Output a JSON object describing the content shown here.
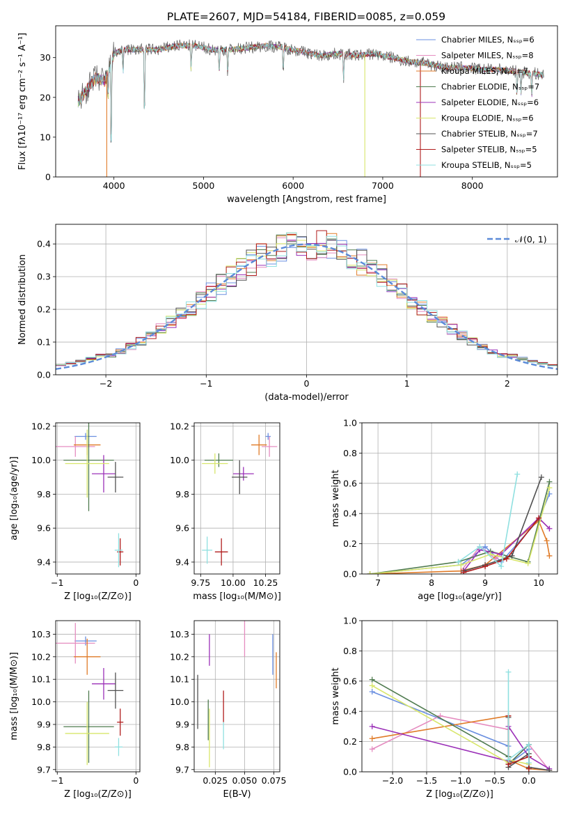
{
  "title": "PLATE=2607, MJD=54184, FIBERID=0085, z=0.059",
  "colors": {
    "Chabrier MILES": "#6a8fe0",
    "Salpeter MILES": "#e58cc0",
    "Kroupa MILES": "#e07b28",
    "Chabrier ELODIE": "#4f7b4f",
    "Salpeter ELODIE": "#9b30b8",
    "Kroupa ELODIE": "#d8e66a",
    "Chabrier STELIB": "#505050",
    "Salpeter STELIB": "#b01c1c",
    "Kroupa STELIB": "#8fe0e0"
  },
  "chart_data": [
    {
      "id": "spectrum",
      "type": "line",
      "title": "PLATE=2607, MJD=54184, FIBERID=0085, z=0.059",
      "xlabel": "wavelength [Angstrom, rest frame]",
      "ylabel": "Flux [fλ10⁻¹⁷ erg cm⁻² s⁻¹ A⁻¹]",
      "xlim": [
        3350,
        8950
      ],
      "ylim": [
        0,
        38
      ],
      "xticks": [
        "4000",
        "5000",
        "6000",
        "7000",
        "8000"
      ],
      "yticks": [
        "0",
        "10",
        "20",
        "30"
      ],
      "legend": [
        "Chabrier MILES, Nₛₛₚ=6",
        "Salpeter MILES, Nₛₛₚ=8",
        "Kroupa MILES, Nₛₛₚ=7",
        "Chabrier ELODIE, Nₛₛₚ=7",
        "Salpeter ELODIE, Nₛₛₚ=6",
        "Kroupa ELODIE, Nₛₛₚ=6",
        "Chabrier STELIB, Nₛₛₚ=7",
        "Salpeter STELIB, Nₛₛₚ=5",
        "Kroupa STELIB, Nₛₛₚ=5"
      ],
      "continuum": {
        "x": [
          3600,
          3700,
          3800,
          3900,
          4000,
          4100,
          4300,
          4500,
          4700,
          4900,
          5100,
          5300,
          5500,
          5700,
          5900,
          6100,
          6300,
          6500,
          6700,
          6900,
          7100,
          7300,
          7500,
          7700,
          7900,
          8100,
          8300,
          8500,
          8700,
          8800
        ],
        "y": [
          19,
          22,
          25,
          24,
          31,
          32,
          32,
          32,
          33,
          33,
          32,
          32,
          32.5,
          33,
          32.5,
          31.5,
          30.5,
          31,
          30.5,
          31,
          30,
          29,
          28.5,
          27.5,
          27.5,
          27,
          27,
          26.5,
          26,
          25.5
        ]
      },
      "absorption_lines": [
        3934,
        3969,
        4102,
        4340,
        4861,
        5175,
        5270,
        5890,
        6563,
        8498,
        8542,
        8662
      ],
      "dropouts": [
        3920,
        6800,
        7420
      ]
    },
    {
      "id": "residuals",
      "type": "line",
      "xlabel": "(data-model)/error",
      "ylabel": "Normed distribution",
      "xlim": [
        -2.5,
        2.5
      ],
      "ylim": [
        0,
        0.46
      ],
      "xticks": [
        "−2",
        "−1",
        "0",
        "1",
        "2"
      ],
      "yticks": [
        "0.0",
        "0.1",
        "0.2",
        "0.3",
        "0.4"
      ],
      "reference": {
        "name": "𝒩(0, 1)",
        "mean": 0,
        "sigma": 1
      },
      "bin_width": 0.1,
      "histograms": "9 step histograms (one per fit) scattering around the N(0,1) curve"
    },
    {
      "id": "age-vs-Z",
      "type": "scatter",
      "xlabel": "Z [log₁₀(Z/Z⊙)]",
      "ylabel": "age  [log₁₀(age/yr)]",
      "xlim": [
        -1.02,
        0.05
      ],
      "ylim": [
        9.33,
        10.22
      ],
      "xticks": [
        "−1",
        "0"
      ],
      "yticks": [
        "9.4",
        "9.6",
        "9.8",
        "10.0",
        "10.2"
      ],
      "points": [
        {
          "fit": "Chabrier MILES",
          "x": -0.64,
          "y": 10.14,
          "xerr": 0.14,
          "yerr": 0.02
        },
        {
          "fit": "Salpeter MILES",
          "x": -0.77,
          "y": 10.08,
          "xerr": 0.25,
          "yerr": 0.06
        },
        {
          "fit": "Kroupa MILES",
          "x": -0.62,
          "y": 10.09,
          "xerr": 0.17,
          "yerr": 0.06
        },
        {
          "fit": "Chabrier ELODIE",
          "x": -0.6,
          "y": 10.0,
          "xerr": 0.32,
          "yerr": 0.3
        },
        {
          "fit": "Salpeter ELODIE",
          "x": -0.41,
          "y": 9.92,
          "xerr": 0.15,
          "yerr": 0.11
        },
        {
          "fit": "Kroupa ELODIE",
          "x": -0.62,
          "y": 9.98,
          "xerr": 0.28,
          "yerr": 0.2
        },
        {
          "fit": "Chabrier STELIB",
          "x": -0.26,
          "y": 9.9,
          "xerr": 0.1,
          "yerr": 0.09
        },
        {
          "fit": "Salpeter STELIB",
          "x": -0.2,
          "y": 9.46,
          "xerr": 0.04,
          "yerr": 0.08
        },
        {
          "fit": "Kroupa STELIB",
          "x": -0.22,
          "y": 9.47,
          "xerr": 0.05,
          "yerr": 0.1
        }
      ]
    },
    {
      "id": "age-vs-mass",
      "type": "scatter",
      "xlabel": "mass [log₁₀(M/M⊙)]",
      "ylabel": "",
      "xlim": [
        9.7,
        10.36
      ],
      "ylim": [
        9.33,
        10.22
      ],
      "xticks": [
        "9.75",
        "10.00",
        "10.25"
      ],
      "yticks": [
        "9.4",
        "9.6",
        "9.8",
        "10.0",
        "10.2"
      ],
      "points": [
        {
          "fit": "Chabrier MILES",
          "x": 10.27,
          "y": 10.14,
          "xerr": 0.02,
          "yerr": 0.02
        },
        {
          "fit": "Salpeter MILES",
          "x": 10.28,
          "y": 10.08,
          "xerr": 0.06,
          "yerr": 0.06
        },
        {
          "fit": "Kroupa MILES",
          "x": 10.2,
          "y": 10.09,
          "xerr": 0.06,
          "yerr": 0.06
        },
        {
          "fit": "Chabrier ELODIE",
          "x": 9.89,
          "y": 10.0,
          "xerr": 0.11,
          "yerr": 0.04
        },
        {
          "fit": "Salpeter ELODIE",
          "x": 10.08,
          "y": 9.92,
          "xerr": 0.08,
          "yerr": 0.04
        },
        {
          "fit": "Kroupa ELODIE",
          "x": 9.86,
          "y": 9.98,
          "xerr": 0.1,
          "yerr": 0.06
        },
        {
          "fit": "Chabrier STELIB",
          "x": 10.05,
          "y": 9.9,
          "xerr": 0.06,
          "yerr": 0.1
        },
        {
          "fit": "Salpeter STELIB",
          "x": 9.91,
          "y": 9.46,
          "xerr": 0.05,
          "yerr": 0.08
        },
        {
          "fit": "Kroupa STELIB",
          "x": 9.8,
          "y": 9.47,
          "xerr": 0.04,
          "yerr": 0.08
        }
      ]
    },
    {
      "id": "mass-weight-vs-age",
      "type": "line",
      "xlabel": "age  [log₁₀(age/yr)]",
      "ylabel": "mass weight",
      "xlim": [
        6.7,
        10.35
      ],
      "ylim": [
        0,
        1.0
      ],
      "xticks": [
        "7",
        "8",
        "9",
        "10"
      ],
      "yticks": [
        "0.0",
        "0.2",
        "0.4",
        "0.6",
        "0.8",
        "1.0"
      ],
      "series": [
        {
          "fit": "Chabrier MILES",
          "x": [
            6.85,
            8.55,
            9.0,
            9.3,
            10.0,
            10.2
          ],
          "y": [
            0.0,
            0.06,
            0.18,
            0.08,
            0.36,
            0.53
          ]
        },
        {
          "fit": "Salpeter MILES",
          "x": [
            8.55,
            8.9,
            9.2,
            10.0,
            10.2
          ],
          "y": [
            0.02,
            0.18,
            0.1,
            0.37,
            0.3
          ]
        },
        {
          "fit": "Kroupa MILES",
          "x": [
            6.85,
            8.55,
            9.0,
            10.0,
            10.15,
            10.2
          ],
          "y": [
            0.0,
            0.02,
            0.06,
            0.35,
            0.22,
            0.12
          ]
        },
        {
          "fit": "Chabrier ELODIE",
          "x": [
            6.85,
            8.5,
            9.1,
            9.8,
            10.2
          ],
          "y": [
            0.0,
            0.08,
            0.15,
            0.08,
            0.61
          ]
        },
        {
          "fit": "Salpeter ELODIE",
          "x": [
            8.6,
            8.9,
            9.3,
            10.0,
            10.2
          ],
          "y": [
            0.02,
            0.16,
            0.13,
            0.37,
            0.3
          ]
        },
        {
          "fit": "Kroupa ELODIE",
          "x": [
            6.85,
            8.55,
            9.1,
            9.8,
            10.2
          ],
          "y": [
            0.0,
            0.06,
            0.13,
            0.07,
            0.57
          ]
        },
        {
          "fit": "Chabrier STELIB",
          "x": [
            8.6,
            9.0,
            9.5,
            10.05
          ],
          "y": [
            0.02,
            0.06,
            0.12,
            0.64
          ]
        },
        {
          "fit": "Salpeter STELIB",
          "x": [
            8.6,
            9.0,
            9.4,
            10.0
          ],
          "y": [
            0.01,
            0.05,
            0.1,
            0.37
          ]
        },
        {
          "fit": "Kroupa STELIB",
          "x": [
            8.5,
            8.9,
            9.3,
            9.6
          ],
          "y": [
            0.08,
            0.18,
            0.05,
            0.66
          ]
        }
      ]
    },
    {
      "id": "mass-vs-Z",
      "type": "scatter",
      "xlabel": "Z [log₁₀(Z/Z⊙)]",
      "ylabel": "mass [log₁₀(M/M⊙)]",
      "xlim": [
        -1.02,
        0.05
      ],
      "ylim": [
        9.69,
        10.36
      ],
      "xticks": [
        "−1",
        "0"
      ],
      "yticks": [
        "9.7",
        "9.8",
        "9.9",
        "10.0",
        "10.1",
        "10.2",
        "10.3"
      ],
      "points": [
        {
          "fit": "Chabrier MILES",
          "x": -0.64,
          "y": 10.27,
          "xerr": 0.14,
          "yerr": 0.02
        },
        {
          "fit": "Salpeter MILES",
          "x": -0.77,
          "y": 10.26,
          "xerr": 0.25,
          "yerr": 0.09
        },
        {
          "fit": "Kroupa MILES",
          "x": -0.62,
          "y": 10.2,
          "xerr": 0.17,
          "yerr": 0.08
        },
        {
          "fit": "Chabrier ELODIE",
          "x": -0.6,
          "y": 9.89,
          "xerr": 0.32,
          "yerr": 0.16
        },
        {
          "fit": "Salpeter ELODIE",
          "x": -0.41,
          "y": 10.08,
          "xerr": 0.15,
          "yerr": 0.07
        },
        {
          "fit": "Kroupa ELODIE",
          "x": -0.62,
          "y": 9.86,
          "xerr": 0.28,
          "yerr": 0.14
        },
        {
          "fit": "Chabrier STELIB",
          "x": -0.26,
          "y": 10.05,
          "xerr": 0.1,
          "yerr": 0.08
        },
        {
          "fit": "Salpeter STELIB",
          "x": -0.2,
          "y": 9.91,
          "xerr": 0.04,
          "yerr": 0.06
        },
        {
          "fit": "Kroupa STELIB",
          "x": -0.22,
          "y": 9.8,
          "xerr": 0.05,
          "yerr": 0.04
        }
      ]
    },
    {
      "id": "mass-vs-ebv",
      "type": "scatter",
      "xlabel": "E(B-V)",
      "ylabel": "",
      "xlim": [
        0.007,
        0.08
      ],
      "ylim": [
        9.69,
        10.36
      ],
      "xticks": [
        "0.025",
        "0.050",
        "0.075"
      ],
      "yticks": [
        "9.7",
        "9.8",
        "9.9",
        "10.0",
        "10.1",
        "10.2",
        "10.3"
      ],
      "points": [
        {
          "fit": "Chabrier MILES",
          "x": 0.074,
          "y": 10.21,
          "xerr": 0.0,
          "yerr": 0.09
        },
        {
          "fit": "Salpeter MILES",
          "x": 0.05,
          "y": 10.28,
          "xerr": 0.0,
          "yerr": 0.08
        },
        {
          "fit": "Kroupa MILES",
          "x": 0.077,
          "y": 10.14,
          "xerr": 0.0,
          "yerr": 0.08
        },
        {
          "fit": "Chabrier ELODIE",
          "x": 0.019,
          "y": 9.92,
          "xerr": 0.0,
          "yerr": 0.09
        },
        {
          "fit": "Salpeter ELODIE",
          "x": 0.02,
          "y": 10.23,
          "xerr": 0.0,
          "yerr": 0.07
        },
        {
          "fit": "Kroupa ELODIE",
          "x": 0.02,
          "y": 9.84,
          "xerr": 0.0,
          "yerr": 0.13
        },
        {
          "fit": "Chabrier STELIB",
          "x": 0.01,
          "y": 10.0,
          "xerr": 0.0,
          "yerr": 0.12
        },
        {
          "fit": "Salpeter STELIB",
          "x": 0.032,
          "y": 9.98,
          "xerr": 0.0,
          "yerr": 0.07
        },
        {
          "fit": "Kroupa STELIB",
          "x": 0.032,
          "y": 9.85,
          "xerr": 0.0,
          "yerr": 0.06
        }
      ]
    },
    {
      "id": "mass-weight-vs-Z",
      "type": "line",
      "xlabel": "Z [log₁₀(Z/Z⊙)]",
      "ylabel": "mass weight",
      "xlim": [
        -2.45,
        0.42
      ],
      "ylim": [
        0,
        1.0
      ],
      "xticks": [
        "−2.0",
        "−1.5",
        "−1.0",
        "−0.5",
        "0.0"
      ],
      "yticks": [
        "0.0",
        "0.2",
        "0.4",
        "0.6",
        "0.8",
        "1.0"
      ],
      "series": [
        {
          "fit": "Chabrier MILES",
          "x": [
            -2.3,
            -0.3,
            -0.3,
            0.0,
            0.0
          ],
          "y": [
            0.53,
            0.17,
            0.05,
            0.15,
            0.02
          ]
        },
        {
          "fit": "Salpeter MILES",
          "x": [
            -2.3,
            -1.3,
            -0.3,
            -0.3,
            0.0,
            0.3
          ],
          "y": [
            0.15,
            0.37,
            0.28,
            0.05,
            0.18,
            0.01
          ]
        },
        {
          "fit": "Kroupa MILES",
          "x": [
            -2.3,
            -0.3,
            -0.3,
            0.0,
            0.3
          ],
          "y": [
            0.22,
            0.37,
            0.08,
            0.02,
            0.01
          ]
        },
        {
          "fit": "Chabrier ELODIE",
          "x": [
            -2.3,
            -0.3,
            -0.3,
            0.0,
            0.0
          ],
          "y": [
            0.61,
            0.1,
            0.05,
            0.18,
            0.02
          ]
        },
        {
          "fit": "Salpeter ELODIE",
          "x": [
            -2.3,
            -0.3,
            -0.3,
            0.0,
            0.3
          ],
          "y": [
            0.3,
            0.07,
            0.3,
            0.1,
            0.02
          ]
        },
        {
          "fit": "Kroupa ELODIE",
          "x": [
            -2.3,
            -0.3,
            -0.3,
            0.0,
            0.0
          ],
          "y": [
            0.57,
            0.06,
            0.08,
            0.05,
            0.02
          ]
        },
        {
          "fit": "Chabrier STELIB",
          "x": [
            -0.3,
            -0.3,
            0.0,
            0.0,
            0.3
          ],
          "y": [
            0.36,
            0.03,
            0.12,
            0.03,
            0.01
          ]
        },
        {
          "fit": "Salpeter STELIB",
          "x": [
            -0.3,
            -0.3,
            0.0,
            0.0
          ],
          "y": [
            0.37,
            0.05,
            0.1,
            0.02
          ]
        },
        {
          "fit": "Kroupa STELIB",
          "x": [
            -0.3,
            -0.3,
            0.0,
            0.0
          ],
          "y": [
            0.66,
            0.08,
            0.18,
            0.06
          ]
        }
      ]
    }
  ]
}
